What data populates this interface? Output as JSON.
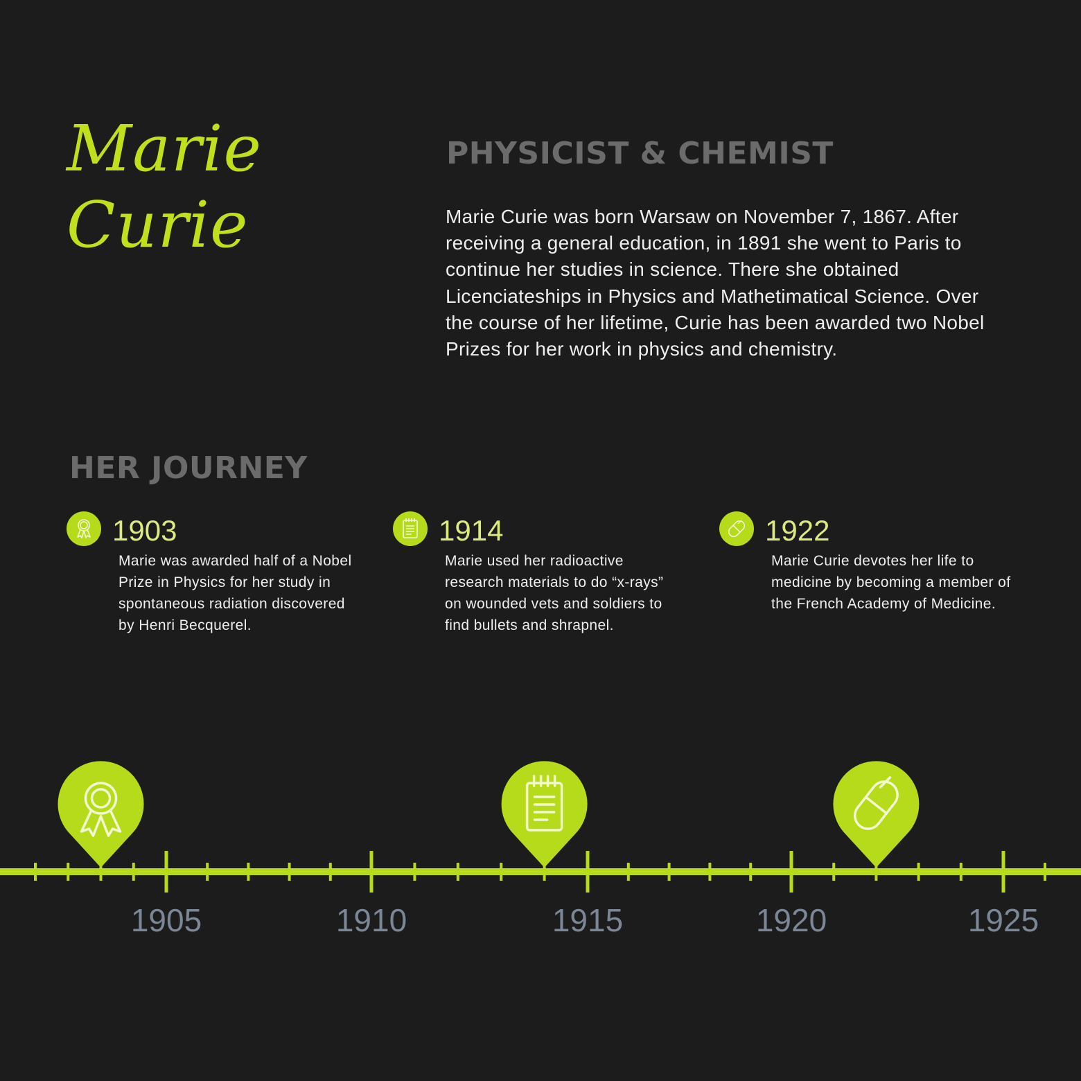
{
  "header": {
    "name_line1": "Marie",
    "name_line2": "Curie",
    "subtitle": "PHYSICIST & CHEMIST",
    "bio": "Marie Curie was born Warsaw on November 7, 1867. After receiving a general education, in 1891 she went to Paris to continue her studies in science. There she obtained Licenciateships in Physics and Mathetimatical Science. Over the course of her lifetime, Curie has been awarded two Nobel Prizes for her work in physics and chemistry."
  },
  "journey": {
    "title": "HER JOURNEY",
    "events": [
      {
        "year": "1903",
        "icon": "award-ribbon-icon",
        "description": "Marie was awarded half of a Nobel Prize in Physics for her study in spontaneous radiation discovered by Henri Becquerel."
      },
      {
        "year": "1914",
        "icon": "notepad-icon",
        "description": "Marie used her radioactive research materials to do “x-rays” on wounded vets and soldiers to find bullets and shrapnel."
      },
      {
        "year": "1922",
        "icon": "pill-capsule-icon",
        "description": "Marie Curie devotes her life to medicine by becoming a member of the French Academy of Medicine."
      }
    ]
  },
  "timeline": {
    "labels": [
      "1905",
      "1910",
      "1915",
      "1920",
      "1925"
    ],
    "markers": [
      {
        "year": 1903,
        "icon": "award-ribbon-icon"
      },
      {
        "year": 1914,
        "icon": "notepad-icon"
      },
      {
        "year": 1922,
        "icon": "pill-capsule-icon"
      }
    ],
    "colors": {
      "line": "#b6db1b",
      "marker": "#b6db1b",
      "label": "#7b8797"
    }
  }
}
